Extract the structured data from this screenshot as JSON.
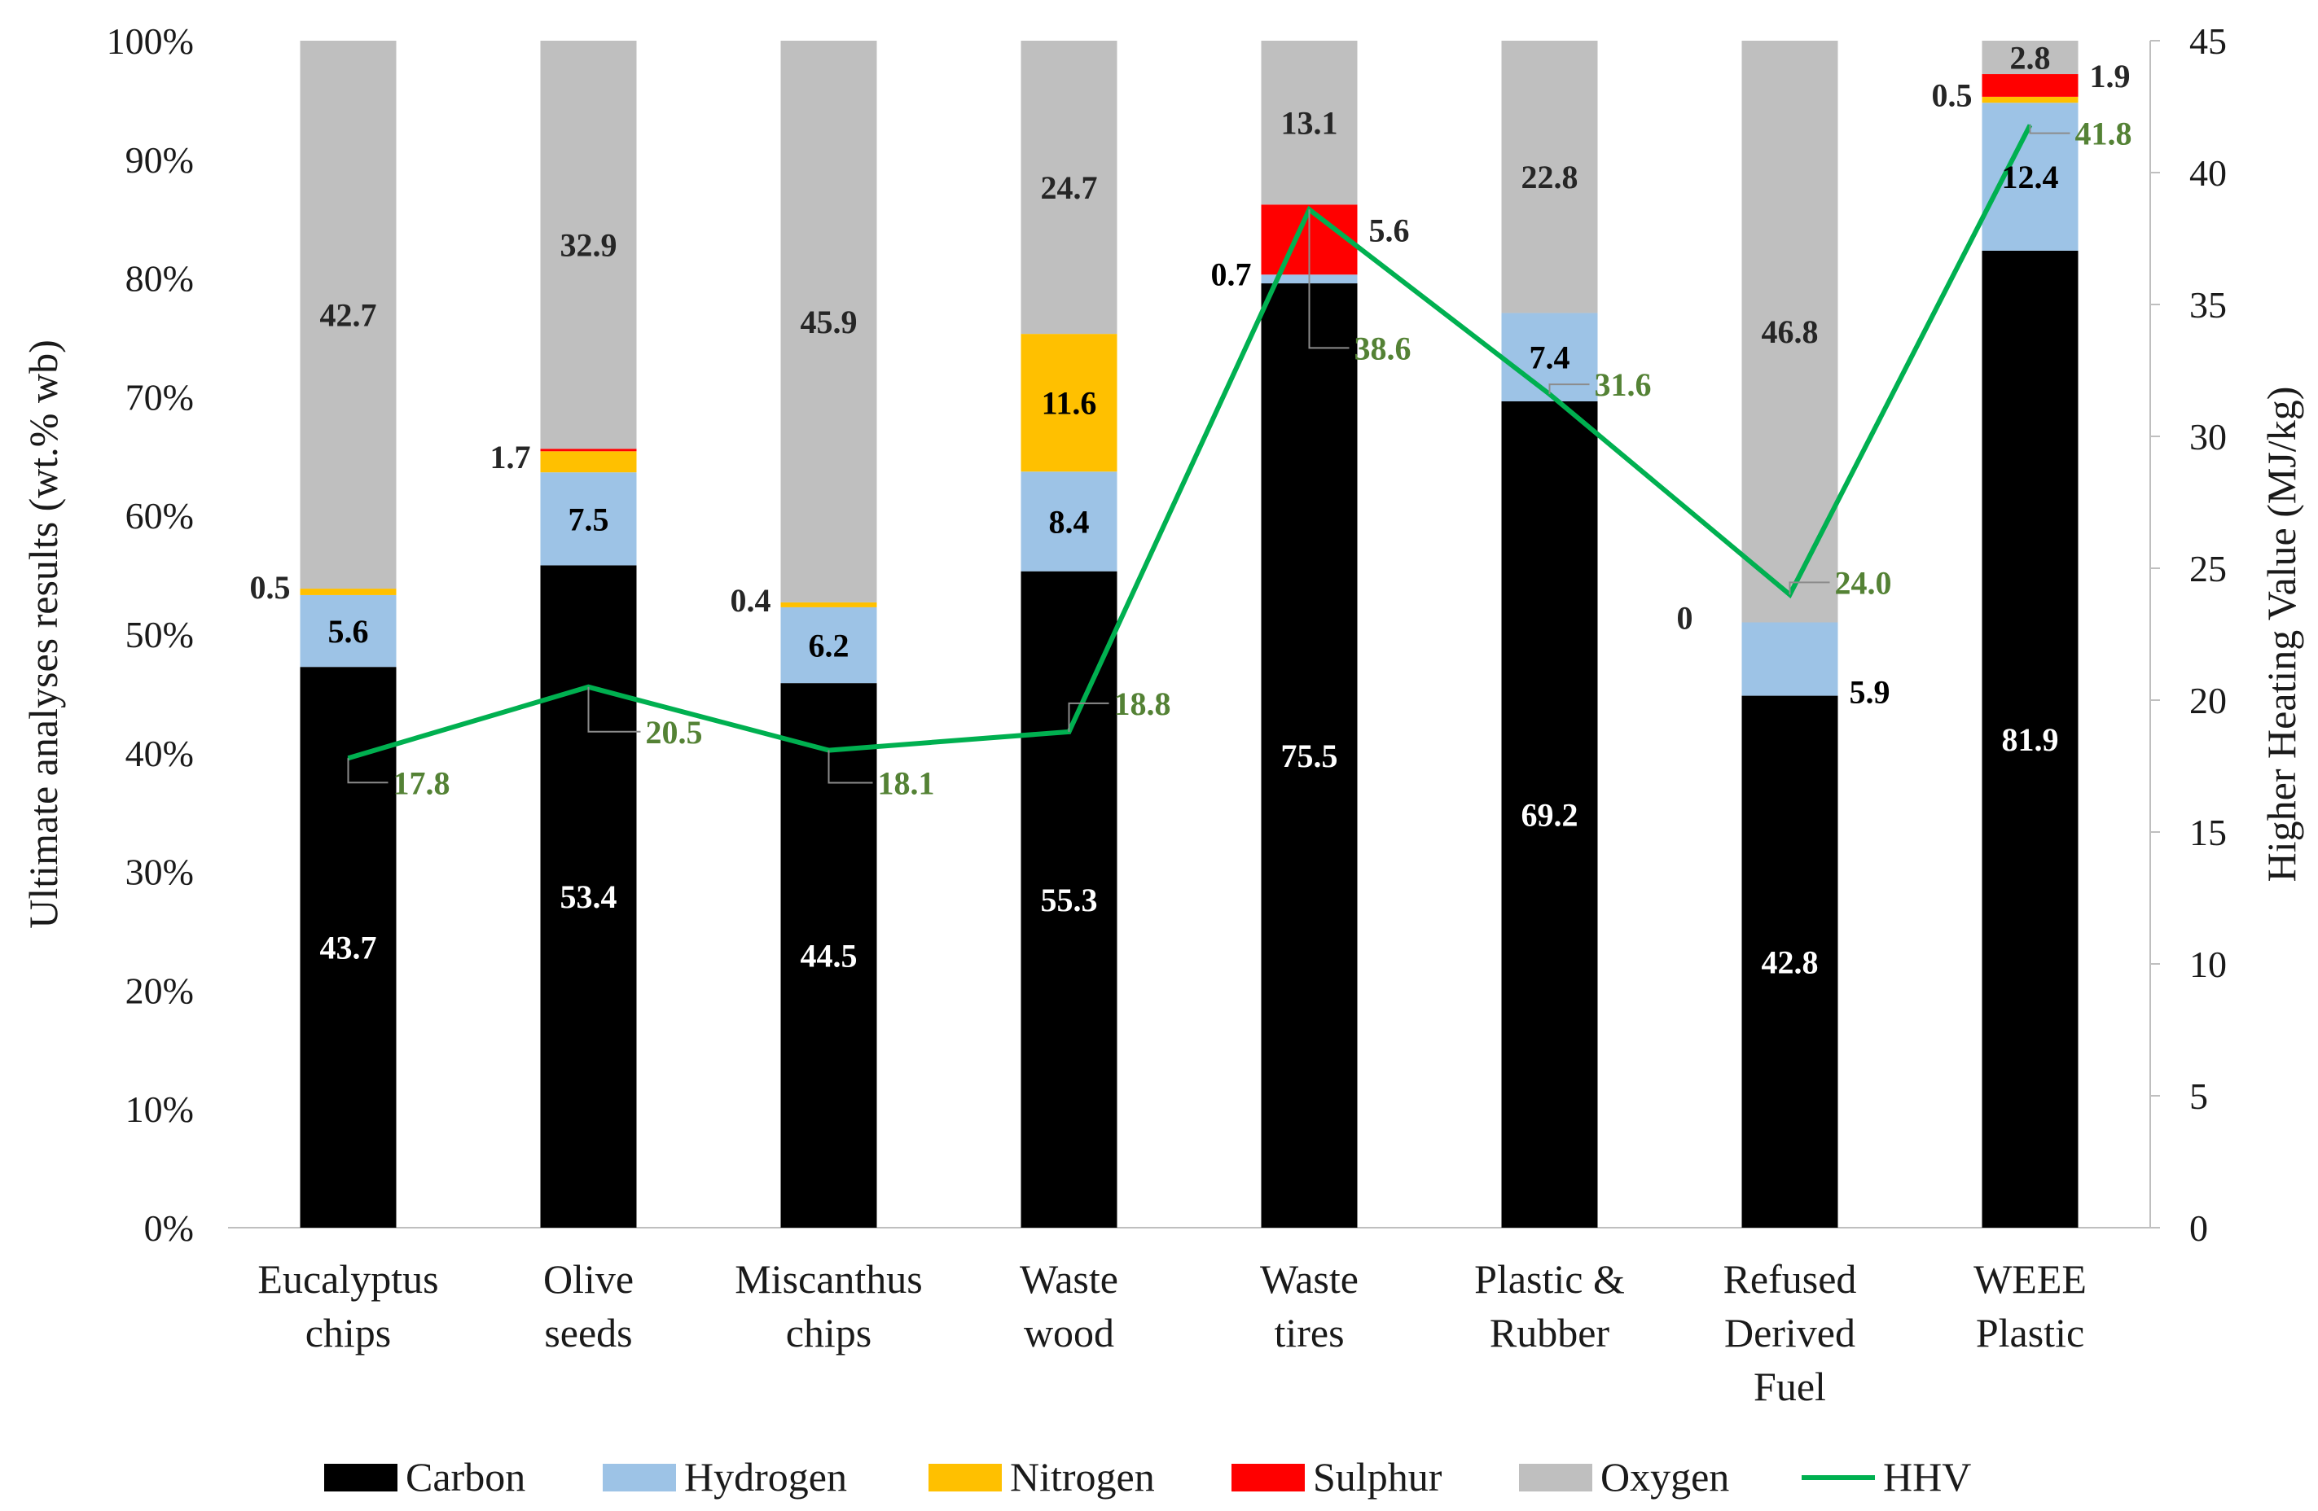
{
  "colors": {
    "Carbon": "#000000",
    "Hydrogen": "#9DC3E6",
    "Nitrogen": "#FFC000",
    "Sulphur": "#FF0000",
    "Oxygen": "#BFBFBF",
    "HHV": "#00B050",
    "hhv_label": "#548235",
    "label_dark": "#262626",
    "label_light": "#ffffff",
    "leader": "#8c8c8c"
  },
  "chart_data": {
    "type": "bar",
    "stacking": "percent",
    "categories": [
      [
        "Eucalyptus",
        "chips"
      ],
      [
        "Olive",
        "seeds"
      ],
      [
        "Miscanthus",
        "chips"
      ],
      [
        "Waste",
        "wood"
      ],
      [
        "Waste",
        "tires"
      ],
      [
        "Plastic &",
        "Rubber"
      ],
      [
        "Refused",
        "Derived",
        "Fuel"
      ],
      [
        "WEEE",
        "Plastic"
      ]
    ],
    "series": [
      {
        "name": "Carbon",
        "values": [
          43.7,
          53.4,
          44.5,
          55.3,
          75.5,
          69.2,
          42.8,
          81.9
        ],
        "labels": [
          "43.7",
          "53.4",
          "44.5",
          "55.3",
          "75.5",
          "69.2",
          "42.8",
          "81.9"
        ]
      },
      {
        "name": "Hydrogen",
        "values": [
          5.6,
          7.5,
          6.2,
          8.4,
          0.7,
          7.4,
          5.9,
          12.4
        ],
        "labels": [
          "5.6",
          "7.5",
          "6.2",
          "8.4",
          "0.7",
          "7.4",
          "5.9",
          "12.4"
        ]
      },
      {
        "name": "Nitrogen",
        "values": [
          0.5,
          1.7,
          0.4,
          11.6,
          0.0,
          0.0,
          0.0,
          0.5
        ],
        "labels": [
          "0.5",
          "1.7",
          "0.4",
          "11.6",
          "",
          "",
          "0",
          "0.5"
        ]
      },
      {
        "name": "Sulphur",
        "values": [
          0.0,
          0.2,
          0.0,
          0.0,
          5.6,
          0.0,
          0.0,
          1.9
        ],
        "labels": [
          "",
          "",
          "",
          "",
          "5.6",
          "",
          "",
          "1.9"
        ]
      },
      {
        "name": "Oxygen",
        "values": [
          42.7,
          32.9,
          45.9,
          24.7,
          13.1,
          22.8,
          46.8,
          2.8
        ],
        "labels": [
          "42.7",
          "32.9",
          "45.9",
          "24.7",
          "13.1",
          "22.8",
          "46.8",
          "2.8"
        ]
      }
    ],
    "line": {
      "name": "HHV",
      "axis": "right",
      "values": [
        17.8,
        20.5,
        18.1,
        18.8,
        38.6,
        31.6,
        24.0,
        41.8
      ],
      "labels": [
        "17.8",
        "20.5",
        "18.1",
        "18.8",
        "38.6",
        "31.6",
        "24.0",
        "41.8"
      ]
    },
    "left_axis": {
      "label": "Ultimate analyses results (wt.% wb)",
      "min": 0,
      "max": 100,
      "step": 10,
      "ticks": [
        "0%",
        "10%",
        "20%",
        "30%",
        "40%",
        "50%",
        "60%",
        "70%",
        "80%",
        "90%",
        "100%"
      ]
    },
    "right_axis": {
      "label": "Higher Heating Value (MJ/kg)",
      "min": 0,
      "max": 45,
      "step": 5,
      "ticks": [
        "0",
        "5",
        "10",
        "15",
        "20",
        "25",
        "30",
        "35",
        "40",
        "45"
      ]
    },
    "legend": {
      "position": "bottom",
      "items": [
        "Carbon",
        "Hydrogen",
        "Nitrogen",
        "Sulphur",
        "Oxygen",
        "HHV"
      ]
    }
  }
}
